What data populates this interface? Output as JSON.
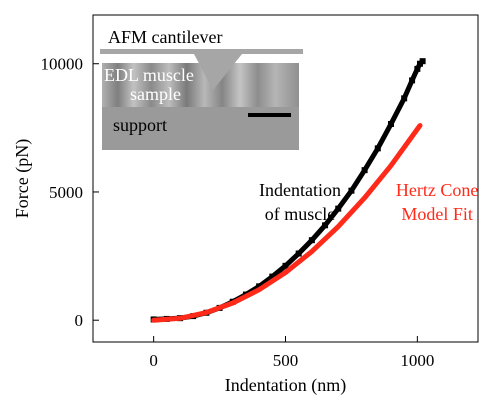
{
  "chart_data": {
    "type": "scatter",
    "xlabel": "Indentation (nm)",
    "ylabel": "Force (pN)",
    "xlim": [
      -230,
      1230
    ],
    "ylim": [
      -850,
      11900
    ],
    "x_ticks": [
      0,
      500,
      1000
    ],
    "y_ticks": [
      0,
      5000,
      10000
    ],
    "grid": false,
    "series": [
      {
        "name": "Indentation of muscle",
        "color": "#000000",
        "marker": "square",
        "x": [
          0,
          50,
          100,
          150,
          200,
          250,
          300,
          350,
          400,
          450,
          500,
          550,
          600,
          650,
          700,
          750,
          800,
          850,
          900,
          950,
          980,
          1000,
          1010,
          1020
        ],
        "y": [
          30,
          50,
          80,
          160,
          290,
          480,
          720,
          1000,
          1320,
          1700,
          2120,
          2600,
          3120,
          3700,
          4350,
          5050,
          5850,
          6700,
          7650,
          8650,
          9350,
          9800,
          10000,
          10100
        ]
      },
      {
        "name": "Hertz Cone Model Fit",
        "color": "#ff2a1a",
        "marker": "line",
        "x": [
          0,
          100,
          200,
          300,
          400,
          500,
          600,
          700,
          800,
          900,
          1000,
          1010
        ],
        "y": [
          0,
          75,
          300,
          670,
          1190,
          1860,
          2680,
          3650,
          4770,
          6030,
          7450,
          7590
        ]
      }
    ],
    "annotations": [
      {
        "text_lines": [
          "Indentation",
          "of muscle"
        ],
        "color": "#000000",
        "at": [
          555,
          4850
        ]
      },
      {
        "text_lines": [
          "Hertz Cone",
          "Model Fit"
        ],
        "color": "#ff2a1a",
        "at": [
          1075,
          4850
        ]
      }
    ],
    "inset": {
      "cantilever_label": "AFM cantilever",
      "sample_label_lines": [
        "EDL muscle",
        "sample"
      ],
      "support_label": "support",
      "colors": {
        "cantilever": "#a6a6a6",
        "sample": "#8f8f8f",
        "support": "#9a9a9a",
        "scale_bar": "#000000"
      }
    }
  }
}
